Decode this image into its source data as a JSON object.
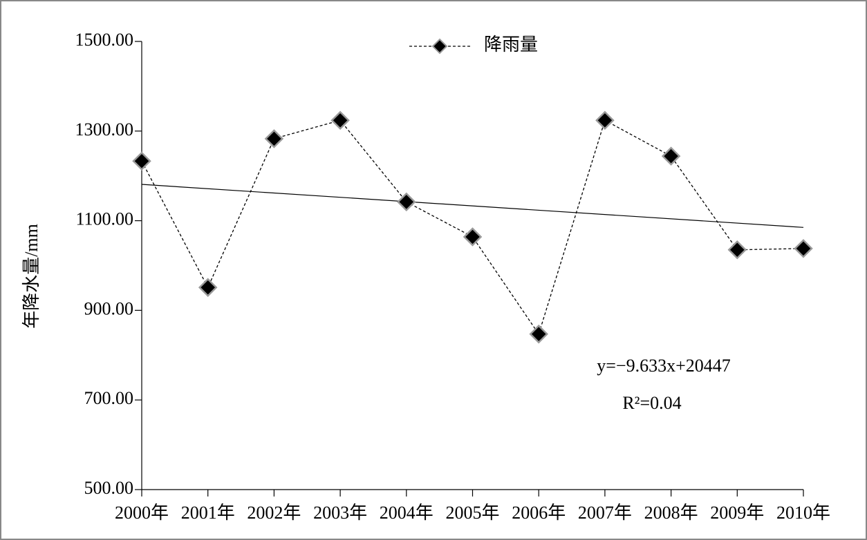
{
  "chart_data": {
    "type": "line",
    "y_label": "年降水量/mm",
    "categories": [
      "2000年",
      "2001年",
      "2002年",
      "2003年",
      "2004年",
      "2005年",
      "2006年",
      "2007年",
      "2008年",
      "2009年",
      "2010年"
    ],
    "series": [
      {
        "name": "降雨量",
        "color": "#000000",
        "values": [
          1233,
          951,
          1283,
          1324,
          1142,
          1064,
          847,
          1324,
          1244,
          1035,
          1038
        ]
      }
    ],
    "trendline": {
      "color": "#000000",
      "values": [
        1181,
        1085
      ]
    },
    "annotations": [
      "y=−9.633x+20447",
      "R²=0.04"
    ],
    "ylim": [
      500,
      1500
    ],
    "yticks": [
      {
        "value": 500,
        "label": "500.00"
      },
      {
        "value": 700,
        "label": "700.00"
      },
      {
        "value": 900,
        "label": "900.00"
      },
      {
        "value": 1100,
        "label": "1100.00"
      },
      {
        "value": 1300,
        "label": "1300.00"
      },
      {
        "value": 1500,
        "label": "1500.00"
      }
    ],
    "grid": false,
    "legend": "top"
  }
}
